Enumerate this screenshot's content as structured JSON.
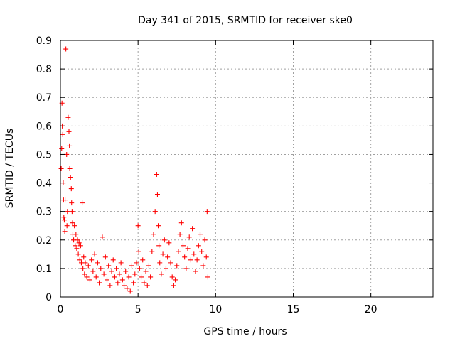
{
  "chart_data": {
    "type": "scatter",
    "title": "Day 341 of 2015, SRMTID for receiver ske0",
    "xlabel": "GPS time / hours",
    "ylabel": "SRMTID / TECUs",
    "xlim": [
      0,
      24
    ],
    "ylim": [
      0,
      0.9
    ],
    "xticks": [
      0,
      5,
      10,
      15,
      20
    ],
    "yticks": [
      0,
      0.1,
      0.2,
      0.3,
      0.4,
      0.5,
      0.6,
      0.7,
      0.8,
      0.9
    ],
    "xtick_labels": [
      "0",
      "5",
      "10",
      "15",
      "20"
    ],
    "ytick_labels": [
      "0",
      "0.1",
      "0.2",
      "0.3",
      "0.4",
      "0.5",
      "0.6",
      "0.7",
      "0.8",
      "0.9"
    ],
    "grid": true,
    "marker": "+",
    "color": "#ff0000",
    "series": [
      {
        "name": "ske0",
        "points": [
          [
            0.05,
            0.45
          ],
          [
            0.08,
            0.52
          ],
          [
            0.1,
            0.68
          ],
          [
            0.12,
            0.6
          ],
          [
            0.15,
            0.57
          ],
          [
            0.18,
            0.4
          ],
          [
            0.2,
            0.34
          ],
          [
            0.22,
            0.28
          ],
          [
            0.25,
            0.27
          ],
          [
            0.28,
            0.23
          ],
          [
            0.3,
            0.34
          ],
          [
            0.35,
            0.87
          ],
          [
            0.4,
            0.5
          ],
          [
            0.42,
            0.25
          ],
          [
            0.45,
            0.3
          ],
          [
            0.5,
            0.63
          ],
          [
            0.55,
            0.58
          ],
          [
            0.58,
            0.53
          ],
          [
            0.6,
            0.45
          ],
          [
            0.65,
            0.42
          ],
          [
            0.7,
            0.38
          ],
          [
            0.72,
            0.33
          ],
          [
            0.75,
            0.3
          ],
          [
            0.78,
            0.26
          ],
          [
            0.8,
            0.22
          ],
          [
            0.85,
            0.2
          ],
          [
            0.9,
            0.25
          ],
          [
            0.95,
            0.18
          ],
          [
            1.0,
            0.22
          ],
          [
            1.05,
            0.17
          ],
          [
            1.1,
            0.2
          ],
          [
            1.15,
            0.15
          ],
          [
            1.2,
            0.19
          ],
          [
            1.25,
            0.13
          ],
          [
            1.3,
            0.18
          ],
          [
            1.35,
            0.12
          ],
          [
            1.4,
            0.33
          ],
          [
            1.45,
            0.1
          ],
          [
            1.5,
            0.14
          ],
          [
            1.55,
            0.08
          ],
          [
            1.6,
            0.12
          ],
          [
            1.7,
            0.07
          ],
          [
            1.8,
            0.11
          ],
          [
            1.9,
            0.06
          ],
          [
            2.0,
            0.13
          ],
          [
            2.1,
            0.09
          ],
          [
            2.2,
            0.15
          ],
          [
            2.3,
            0.07
          ],
          [
            2.4,
            0.12
          ],
          [
            2.5,
            0.05
          ],
          [
            2.6,
            0.1
          ],
          [
            2.7,
            0.21
          ],
          [
            2.8,
            0.08
          ],
          [
            2.9,
            0.14
          ],
          [
            3.0,
            0.06
          ],
          [
            3.1,
            0.11
          ],
          [
            3.2,
            0.04
          ],
          [
            3.3,
            0.09
          ],
          [
            3.4,
            0.13
          ],
          [
            3.5,
            0.07
          ],
          [
            3.6,
            0.1
          ],
          [
            3.7,
            0.05
          ],
          [
            3.8,
            0.08
          ],
          [
            3.9,
            0.12
          ],
          [
            4.0,
            0.06
          ],
          [
            4.1,
            0.04
          ],
          [
            4.2,
            0.09
          ],
          [
            4.3,
            0.03
          ],
          [
            4.4,
            0.07
          ],
          [
            4.5,
            0.02
          ],
          [
            4.6,
            0.11
          ],
          [
            4.7,
            0.05
          ],
          [
            4.8,
            0.08
          ],
          [
            4.9,
            0.12
          ],
          [
            5.0,
            0.25
          ],
          [
            5.05,
            0.16
          ],
          [
            5.1,
            0.1
          ],
          [
            5.2,
            0.07
          ],
          [
            5.3,
            0.13
          ],
          [
            5.4,
            0.05
          ],
          [
            5.5,
            0.09
          ],
          [
            5.6,
            0.04
          ],
          [
            5.7,
            0.11
          ],
          [
            5.8,
            0.07
          ],
          [
            5.9,
            0.16
          ],
          [
            6.0,
            0.22
          ],
          [
            6.1,
            0.3
          ],
          [
            6.2,
            0.43
          ],
          [
            6.25,
            0.36
          ],
          [
            6.3,
            0.25
          ],
          [
            6.35,
            0.18
          ],
          [
            6.4,
            0.12
          ],
          [
            6.5,
            0.08
          ],
          [
            6.6,
            0.15
          ],
          [
            6.7,
            0.2
          ],
          [
            6.8,
            0.1
          ],
          [
            6.9,
            0.14
          ],
          [
            7.0,
            0.19
          ],
          [
            7.1,
            0.12
          ],
          [
            7.2,
            0.07
          ],
          [
            7.3,
            0.04
          ],
          [
            7.4,
            0.06
          ],
          [
            7.5,
            0.11
          ],
          [
            7.6,
            0.16
          ],
          [
            7.7,
            0.22
          ],
          [
            7.8,
            0.26
          ],
          [
            7.9,
            0.18
          ],
          [
            8.0,
            0.14
          ],
          [
            8.1,
            0.1
          ],
          [
            8.2,
            0.17
          ],
          [
            8.3,
            0.21
          ],
          [
            8.4,
            0.13
          ],
          [
            8.5,
            0.24
          ],
          [
            8.6,
            0.15
          ],
          [
            8.7,
            0.09
          ],
          [
            8.8,
            0.13
          ],
          [
            8.9,
            0.18
          ],
          [
            9.0,
            0.22
          ],
          [
            9.1,
            0.16
          ],
          [
            9.2,
            0.11
          ],
          [
            9.3,
            0.2
          ],
          [
            9.4,
            0.14
          ],
          [
            9.45,
            0.3
          ],
          [
            9.5,
            0.07
          ]
        ]
      }
    ]
  }
}
